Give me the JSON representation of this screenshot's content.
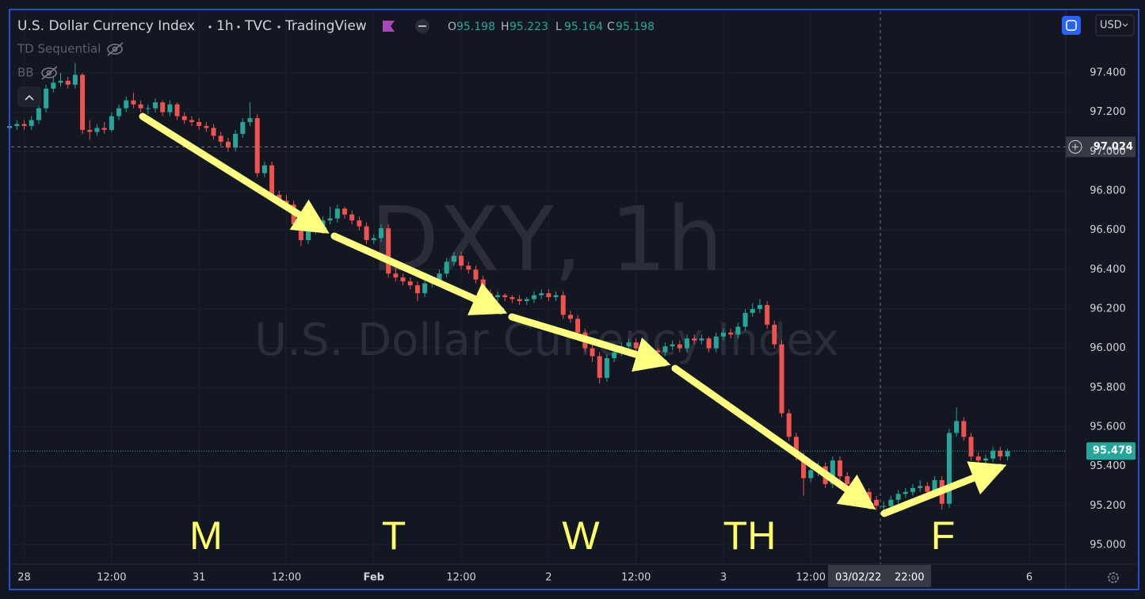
{
  "chart_data": {
    "type": "candlestick",
    "title": "U.S. Dollar Currency Index",
    "interval": "1h",
    "exchange": "TVC",
    "source": "TradingView",
    "ohlc_legend": [
      {
        "key": "O",
        "value": 95.198
      },
      {
        "key": "H",
        "value": 95.223
      },
      {
        "key": "L",
        "value": 95.164
      },
      {
        "key": "C",
        "value": 95.198
      }
    ],
    "indicators": [
      "TD Sequential",
      "BB"
    ],
    "watermark": {
      "symbol": "DXY, 1h",
      "name": "U.S. Dollar Currency Index"
    },
    "currency": "USD",
    "day_labels": [
      "M",
      "T",
      "W",
      "TH",
      "F"
    ],
    "up_color": "#26a69a",
    "down_color": "#ef5350",
    "x": [
      -2,
      -1,
      0,
      1,
      2,
      3,
      4,
      5,
      6,
      7,
      8,
      9,
      10,
      11,
      12,
      13,
      14,
      15,
      16,
      17,
      18,
      19,
      20,
      21,
      22,
      23,
      24,
      25,
      26,
      27,
      28,
      29,
      30,
      31,
      32,
      33,
      34,
      35,
      36,
      37,
      38,
      39,
      40,
      41,
      42,
      43,
      44,
      45,
      46,
      47,
      48,
      49,
      50,
      51,
      52,
      53,
      54,
      55,
      56,
      57,
      58,
      59,
      60,
      61,
      62,
      63,
      64,
      65,
      66,
      67,
      68,
      69,
      70,
      71,
      72,
      73,
      74,
      75,
      76,
      77,
      78,
      79,
      80,
      81,
      82,
      83,
      84,
      85,
      86,
      87,
      88,
      89,
      90,
      91,
      92,
      93,
      94,
      95,
      96,
      97,
      98,
      99,
      100,
      101,
      102,
      103,
      104,
      105,
      106,
      107,
      108,
      109,
      110,
      111,
      112,
      113,
      114,
      115,
      116,
      117,
      118,
      119,
      120,
      121,
      122,
      123,
      124,
      125,
      126,
      127,
      128,
      129,
      130,
      131,
      132,
      133,
      134,
      135
    ],
    "open": [
      97.12,
      97.13,
      97.14,
      97.13,
      97.16,
      97.22,
      97.32,
      97.35,
      97.36,
      97.34,
      97.39,
      97.11,
      97.1,
      97.12,
      97.11,
      97.18,
      97.22,
      97.26,
      97.24,
      97.22,
      97.22,
      97.25,
      97.2,
      97.24,
      97.18,
      97.16,
      97.15,
      97.13,
      97.12,
      97.08,
      97.05,
      97.02,
      97.09,
      97.15,
      97.17,
      96.89,
      96.93,
      96.78,
      96.75,
      96.73,
      96.63,
      96.55,
      96.6,
      96.62,
      96.65,
      96.66,
      96.71,
      96.68,
      96.65,
      96.62,
      96.55,
      96.56,
      96.61,
      96.38,
      96.36,
      96.34,
      96.32,
      96.28,
      96.33,
      96.34,
      96.38,
      96.44,
      96.47,
      96.42,
      96.4,
      96.35,
      96.28,
      96.26,
      96.27,
      96.26,
      96.25,
      96.24,
      96.25,
      96.27,
      96.28,
      96.26,
      96.27,
      96.17,
      96.15,
      96.08,
      96.0,
      95.96,
      95.85,
      95.95,
      95.98,
      96.01,
      96.03,
      96.0,
      95.98,
      95.99,
      95.98,
      96.01,
      96.02,
      96.0,
      96.05,
      96.04,
      96.05,
      96.0,
      96.06,
      96.08,
      96.07,
      96.11,
      96.18,
      96.2,
      96.22,
      96.12,
      96.02,
      95.67,
      95.55,
      95.45,
      95.34,
      95.38,
      95.4,
      95.31,
      95.43,
      95.35,
      95.31,
      95.29,
      95.27,
      95.23,
      95.198,
      95.198,
      95.23,
      95.26,
      95.27,
      95.29,
      95.3,
      95.27,
      95.33,
      95.21,
      95.57,
      95.63,
      95.55,
      95.45,
      95.43,
      95.44,
      95.48,
      95.45
    ],
    "high": [
      97.15,
      97.16,
      97.16,
      97.18,
      97.24,
      97.34,
      97.38,
      97.4,
      97.38,
      97.45,
      97.4,
      97.16,
      97.14,
      97.15,
      97.2,
      97.24,
      97.28,
      97.3,
      97.26,
      97.24,
      97.27,
      97.26,
      97.26,
      97.25,
      97.2,
      97.18,
      97.17,
      97.15,
      97.14,
      97.1,
      97.07,
      97.11,
      97.17,
      97.25,
      97.19,
      96.95,
      96.95,
      96.8,
      96.78,
      96.75,
      96.65,
      96.62,
      96.64,
      96.67,
      96.72,
      96.73,
      96.72,
      96.7,
      96.67,
      96.64,
      96.58,
      96.63,
      96.63,
      96.41,
      96.38,
      96.36,
      96.34,
      96.35,
      96.36,
      96.4,
      96.46,
      96.49,
      96.49,
      96.44,
      96.42,
      96.37,
      96.3,
      96.29,
      96.28,
      96.27,
      96.27,
      96.26,
      96.29,
      96.3,
      96.3,
      96.29,
      96.29,
      96.19,
      96.17,
      96.1,
      96.02,
      95.98,
      95.97,
      96.0,
      96.03,
      96.05,
      96.05,
      96.02,
      96.01,
      96.0,
      96.03,
      96.04,
      96.04,
      96.07,
      96.07,
      96.07,
      96.06,
      96.08,
      96.1,
      96.1,
      96.13,
      96.2,
      96.23,
      96.25,
      96.24,
      96.14,
      96.04,
      95.69,
      95.57,
      95.47,
      95.41,
      95.42,
      95.42,
      95.45,
      95.45,
      95.37,
      95.33,
      95.31,
      95.29,
      95.25,
      95.223,
      95.25,
      95.28,
      95.29,
      95.31,
      95.33,
      95.32,
      95.35,
      95.35,
      95.59,
      95.7,
      95.65,
      95.57,
      95.47,
      95.46,
      95.5,
      95.5,
      95.49
    ],
    "low": [
      97.1,
      97.11,
      97.11,
      97.11,
      97.14,
      97.2,
      97.3,
      97.33,
      97.32,
      97.32,
      97.09,
      97.06,
      97.08,
      97.09,
      97.1,
      97.16,
      97.2,
      97.22,
      97.2,
      97.19,
      97.2,
      97.18,
      97.18,
      97.16,
      97.14,
      97.13,
      97.11,
      97.1,
      97.06,
      97.03,
      97.0,
      97.0,
      97.07,
      97.13,
      96.87,
      96.87,
      96.76,
      96.72,
      96.71,
      96.61,
      96.52,
      96.53,
      96.58,
      96.6,
      96.63,
      96.64,
      96.66,
      96.63,
      96.6,
      96.53,
      96.53,
      96.54,
      96.36,
      96.34,
      96.32,
      96.3,
      96.24,
      96.26,
      96.31,
      96.32,
      96.36,
      96.42,
      96.4,
      96.38,
      96.33,
      96.26,
      96.24,
      96.24,
      96.24,
      96.23,
      96.22,
      96.22,
      96.23,
      96.25,
      96.24,
      96.24,
      96.15,
      96.13,
      96.06,
      95.98,
      95.93,
      95.82,
      95.83,
      95.93,
      95.96,
      95.99,
      95.98,
      95.96,
      95.97,
      95.96,
      95.96,
      95.99,
      95.98,
      95.98,
      96.02,
      96.02,
      95.98,
      95.98,
      96.04,
      96.05,
      96.05,
      96.09,
      96.16,
      96.18,
      96.1,
      96.0,
      95.65,
      95.53,
      95.43,
      95.25,
      95.32,
      95.35,
      95.29,
      95.29,
      95.33,
      95.29,
      95.27,
      95.25,
      95.21,
      95.18,
      95.164,
      95.18,
      95.21,
      95.24,
      95.25,
      95.27,
      95.25,
      95.25,
      95.18,
      95.19,
      95.55,
      95.53,
      95.43,
      95.41,
      95.41,
      95.42,
      95.43,
      95.43
    ],
    "close": [
      97.13,
      97.14,
      97.13,
      97.16,
      97.22,
      97.32,
      97.35,
      97.36,
      97.34,
      97.39,
      97.11,
      97.1,
      97.12,
      97.11,
      97.18,
      97.22,
      97.26,
      97.24,
      97.22,
      97.22,
      97.25,
      97.2,
      97.24,
      97.18,
      97.16,
      97.15,
      97.13,
      97.12,
      97.08,
      97.05,
      97.02,
      97.09,
      97.15,
      97.17,
      96.89,
      96.93,
      96.78,
      96.75,
      96.73,
      96.63,
      96.55,
      96.6,
      96.62,
      96.65,
      96.66,
      96.71,
      96.68,
      96.65,
      96.62,
      96.55,
      96.56,
      96.61,
      96.38,
      96.36,
      96.34,
      96.32,
      96.28,
      96.33,
      96.34,
      96.38,
      96.44,
      96.47,
      96.42,
      96.4,
      96.35,
      96.28,
      96.26,
      96.27,
      96.26,
      96.25,
      96.24,
      96.25,
      96.27,
      96.28,
      96.26,
      96.27,
      96.17,
      96.15,
      96.08,
      96.0,
      95.96,
      95.85,
      95.95,
      95.98,
      96.01,
      96.03,
      96.0,
      95.98,
      95.99,
      95.98,
      96.01,
      96.02,
      96.0,
      96.05,
      96.04,
      96.05,
      96.0,
      96.06,
      96.08,
      96.07,
      96.11,
      96.18,
      96.2,
      96.22,
      96.12,
      96.02,
      95.67,
      95.55,
      95.45,
      95.34,
      95.38,
      95.4,
      95.31,
      95.43,
      95.35,
      95.31,
      95.29,
      95.27,
      95.23,
      95.2,
      95.198,
      95.23,
      95.26,
      95.27,
      95.29,
      95.3,
      95.27,
      95.33,
      95.21,
      95.57,
      95.63,
      95.55,
      95.45,
      95.43,
      95.44,
      95.48,
      95.45,
      95.478
    ],
    "xlim": [
      -1.8,
      143
    ],
    "xticks": [
      {
        "value": 0,
        "label": "28"
      },
      {
        "value": 12,
        "label": "12:00"
      },
      {
        "value": 24,
        "label": "31"
      },
      {
        "value": 36,
        "label": "12:00"
      },
      {
        "value": 48,
        "label": "Feb"
      },
      {
        "value": 60,
        "label": "12:00"
      },
      {
        "value": 72,
        "label": "2"
      },
      {
        "value": 84,
        "label": "12:00"
      },
      {
        "value": 96,
        "label": "3"
      },
      {
        "value": 108,
        "label": "12:00"
      },
      {
        "value": 138,
        "label": "6"
      }
    ],
    "ylim": [
      94.903,
      97.714
    ],
    "yticks": [
      {
        "value": 95,
        "label": "95.000"
      },
      {
        "value": 95.2,
        "label": "95.200"
      },
      {
        "value": 95.4,
        "label": "95.400"
      },
      {
        "value": 95.6,
        "label": "95.600"
      },
      {
        "value": 95.8,
        "label": "95.800"
      },
      {
        "value": 96,
        "label": "96.000"
      },
      {
        "value": 96.2,
        "label": "96.200"
      },
      {
        "value": 96.4,
        "label": "96.400"
      },
      {
        "value": 96.6,
        "label": "96.600"
      },
      {
        "value": 96.8,
        "label": "96.800"
      },
      {
        "value": 97,
        "label": "97.000"
      },
      {
        "value": 97.2,
        "label": "97.200"
      },
      {
        "value": 97.4,
        "label": "97.400"
      }
    ],
    "grid": true,
    "crosshair": {
      "price": 97.024,
      "date": "03/02/22",
      "time": "22:00"
    },
    "last_price": 95.478
  }
}
